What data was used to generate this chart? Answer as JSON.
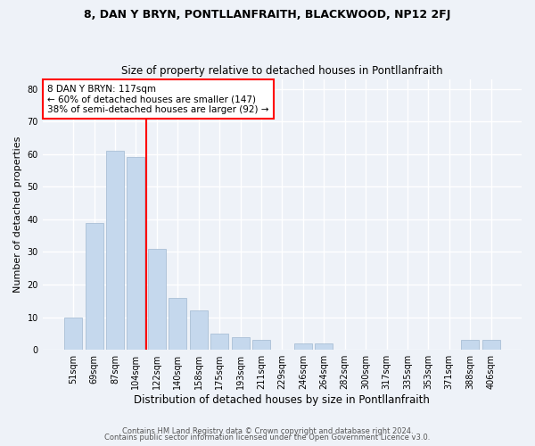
{
  "title1": "8, DAN Y BRYN, PONTLLANFRAITH, BLACKWOOD, NP12 2FJ",
  "title2": "Size of property relative to detached houses in Pontllanfraith",
  "xlabel": "Distribution of detached houses by size in Pontllanfraith",
  "ylabel": "Number of detached properties",
  "categories": [
    "51sqm",
    "69sqm",
    "87sqm",
    "104sqm",
    "122sqm",
    "140sqm",
    "158sqm",
    "175sqm",
    "193sqm",
    "211sqm",
    "229sqm",
    "246sqm",
    "264sqm",
    "282sqm",
    "300sqm",
    "317sqm",
    "335sqm",
    "353sqm",
    "371sqm",
    "388sqm",
    "406sqm"
  ],
  "values": [
    10,
    39,
    61,
    59,
    31,
    16,
    12,
    5,
    4,
    3,
    0,
    2,
    2,
    0,
    0,
    0,
    0,
    0,
    0,
    3,
    3
  ],
  "bar_color": "#c5d8ed",
  "bar_edge_color": "#a0b8d0",
  "vline_x": 3.5,
  "vline_color": "red",
  "annotation_text": "8 DAN Y BRYN: 117sqm\n← 60% of detached houses are smaller (147)\n38% of semi-detached houses are larger (92) →",
  "annotation_box_color": "white",
  "annotation_box_edge_color": "red",
  "ylim": [
    0,
    83
  ],
  "yticks": [
    0,
    10,
    20,
    30,
    40,
    50,
    60,
    70,
    80
  ],
  "footer1": "Contains HM Land Registry data © Crown copyright and database right 2024.",
  "footer2": "Contains public sector information licensed under the Open Government Licence v3.0.",
  "background_color": "#eef2f8",
  "grid_color": "white",
  "title1_fontsize": 9,
  "title2_fontsize": 8.5,
  "ylabel_fontsize": 8,
  "xlabel_fontsize": 8.5,
  "tick_fontsize": 7,
  "footer_fontsize": 6,
  "annot_fontsize": 7.5
}
